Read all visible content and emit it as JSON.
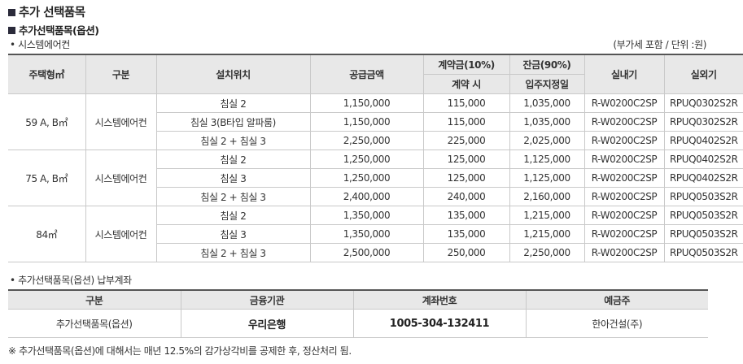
{
  "title": "추가 선택품목",
  "section_title": "추가선택품목(옵션)",
  "sub1": "• 시스템에어컨",
  "unit_note": "(부가세 포함 / 단위 :원)",
  "table": {
    "headers": {
      "type": "주택형㎡",
      "category": "구분",
      "location": "설치위치",
      "supply": "공급금액",
      "deposit": "계약금(10%)",
      "deposit_sub": "계약 시",
      "balance": "잔금(90%)",
      "balance_sub": "입주지정일",
      "indoor": "실내기",
      "outdoor": "실외기"
    },
    "groups": [
      {
        "type": "59 A, B㎡",
        "category": "시스템에어컨",
        "rows": [
          {
            "location": "침실 2",
            "supply": "1,150,000",
            "deposit": "115,000",
            "balance": "1,035,000",
            "indoor": "R-W0200C2SP",
            "outdoor": "RPUQ0302S2R"
          },
          {
            "location": "침실 3(B타입 알파룸)",
            "supply": "1,150,000",
            "deposit": "115,000",
            "balance": "1,035,000",
            "indoor": "R-W0200C2SP",
            "outdoor": "RPUQ0302S2R"
          },
          {
            "location": "침실 2 + 침실 3",
            "supply": "2,250,000",
            "deposit": "225,000",
            "balance": "2,025,000",
            "indoor": "R-W0200C2SP",
            "outdoor": "RPUQ0402S2R"
          }
        ]
      },
      {
        "type": "75 A, B㎡",
        "category": "시스템에어컨",
        "rows": [
          {
            "location": "침실 2",
            "supply": "1,250,000",
            "deposit": "125,000",
            "balance": "1,125,000",
            "indoor": "R-W0200C2SP",
            "outdoor": "RPUQ0402S2R"
          },
          {
            "location": "침실 3",
            "supply": "1,250,000",
            "deposit": "125,000",
            "balance": "1,125,000",
            "indoor": "R-W0200C2SP",
            "outdoor": "RPUQ0402S2R"
          },
          {
            "location": "침실 2 + 침실 3",
            "supply": "2,400,000",
            "deposit": "240,000",
            "balance": "2,160,000",
            "indoor": "R-W0200C2SP",
            "outdoor": "RPUQ0503S2R"
          }
        ]
      },
      {
        "type": "84㎡",
        "category": "시스템에어컨",
        "rows": [
          {
            "location": "침실 2",
            "supply": "1,350,000",
            "deposit": "135,000",
            "balance": "1,215,000",
            "indoor": "R-W0200C2SP",
            "outdoor": "RPUQ0503S2R"
          },
          {
            "location": "침실 3",
            "supply": "1,350,000",
            "deposit": "135,000",
            "balance": "1,215,000",
            "indoor": "R-W0200C2SP",
            "outdoor": "RPUQ0503S2R"
          },
          {
            "location": "침실 2 + 침실 3",
            "supply": "2,500,000",
            "deposit": "250,000",
            "balance": "2,250,000",
            "indoor": "R-W0200C2SP",
            "outdoor": "RPUQ0503S2R"
          }
        ]
      }
    ]
  },
  "sub2": "• 추가선택품목(옵션) 납부계좌",
  "account": {
    "headers": {
      "category": "구분",
      "bank": "금융기관",
      "account_no": "계좌번호",
      "holder": "예금주"
    },
    "row": {
      "category": "추가선택품목(옵션)",
      "bank": "우리은행",
      "account_no": "1005-304-132411",
      "holder": "한아건설(주)"
    }
  },
  "footnote": "※ 추가선택품목(옵션)에 대해서는 매년 12.5%의 감가상각비를 공제한 후, 정산처리 됨."
}
